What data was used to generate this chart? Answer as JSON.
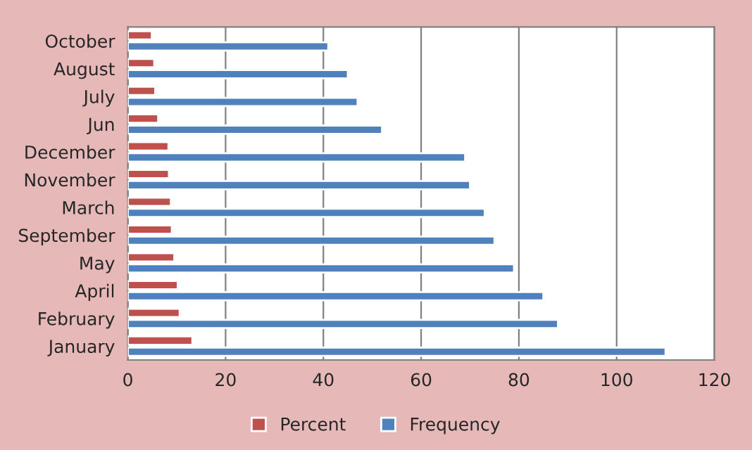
{
  "chart_data": {
    "type": "bar",
    "orientation": "horizontal",
    "categories": [
      "October",
      "August",
      "July",
      "Jun",
      "December",
      "November",
      "March",
      "September",
      "May",
      "April",
      "February",
      "January"
    ],
    "series": [
      {
        "name": "Percent",
        "color": "#c0504d",
        "values": [
          4.9,
          5.4,
          5.6,
          6.2,
          8.3,
          8.4,
          8.8,
          9.0,
          9.5,
          10.2,
          10.6,
          13.2
        ]
      },
      {
        "name": "Frequency",
        "color": "#4f81bd",
        "values": [
          41,
          45,
          47,
          52,
          69,
          70,
          73,
          75,
          79,
          85,
          88,
          110
        ]
      }
    ],
    "xlim": [
      0,
      120
    ],
    "xticks": [
      0,
      20,
      40,
      60,
      80,
      100,
      120
    ],
    "grid": "x",
    "legend": "bottom"
  }
}
